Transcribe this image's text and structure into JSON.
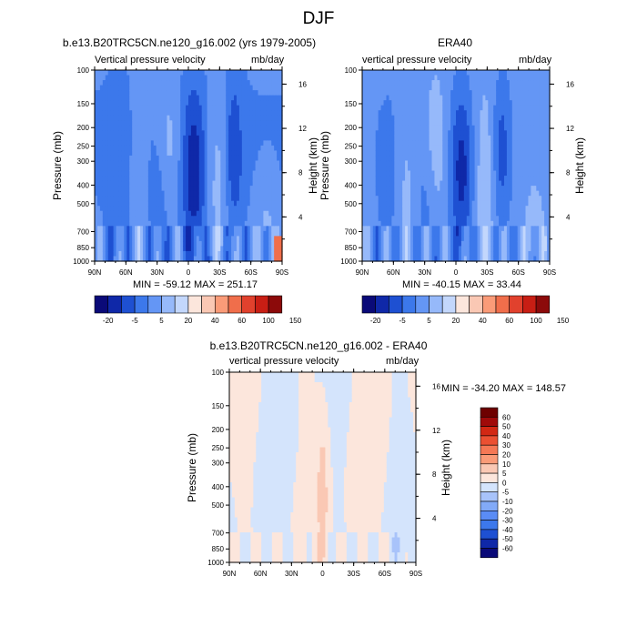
{
  "figure_title": "DJF",
  "panels": {
    "model": {
      "title": "b.e13.B20TRC5CN.ne120_g16.002 (yrs 1979-2005)",
      "left_label": "Vertical pressure velocity",
      "right_label": "mb/day",
      "minmax": "MIN = -59.12   MAX = 251.17"
    },
    "obs": {
      "title": "ERA40",
      "left_label": "vertical pressure velocity",
      "right_label": "mb/day",
      "minmax": "MIN = -40.15   MAX =  33.44"
    },
    "diff": {
      "title": "b.e13.B20TRC5CN.ne120_g16.002 - ERA40",
      "left_label": "vertical pressure velocity",
      "right_label": "mb/day",
      "minmax": "MIN = -34.20   MAX = 148.57"
    }
  },
  "axes": {
    "ylabel": "Pressure (mb)",
    "ylabel_right": "Height (km)",
    "x_ticks": [
      "90N",
      "60N",
      "30N",
      "0",
      "30S",
      "60S",
      "90S"
    ],
    "p_ticks": [
      "100",
      "150",
      "200",
      "250",
      "300",
      "400",
      "500",
      "700",
      "850",
      "1000"
    ],
    "h_ticks": [
      "16",
      "12",
      "8",
      "4"
    ]
  },
  "colorbars": {
    "main": {
      "colors": [
        "#0a0a78",
        "#0f28a8",
        "#1e50d2",
        "#3c78eb",
        "#6496f5",
        "#96b9fa",
        "#c3d7fc",
        "#fce6dc",
        "#fac8b4",
        "#fa9b78",
        "#f06e4b",
        "#e1412d",
        "#c81e14",
        "#8c0a0a"
      ],
      "labels": [
        "-20",
        "-5",
        "5",
        "20",
        "40",
        "60",
        "100",
        "150"
      ]
    },
    "diff": {
      "colors": [
        "#0a0a78",
        "#0f28a8",
        "#1e50d2",
        "#3c78eb",
        "#5a8cf5",
        "#82aaf8",
        "#a8c3fa",
        "#d4e4fc",
        "#fce6dc",
        "#fac8b4",
        "#fa9b78",
        "#f57855",
        "#eb5032",
        "#d22814",
        "#a00a0a",
        "#6e0000"
      ],
      "labels": [
        "-60",
        "-50",
        "-40",
        "-30",
        "-20",
        "-10",
        "-5",
        "0",
        "5",
        "10",
        "20",
        "30",
        "40",
        "50",
        "60"
      ]
    }
  },
  "chart_data": [
    {
      "type": "heatmap",
      "title": "b.e13.B20TRC5CN.ne120_g16.002 (yrs 1979-2005)",
      "xlabel": "",
      "ylabel": "Pressure (mb)",
      "x": [
        "90N",
        "60N",
        "30N",
        "0",
        "30S",
        "60S",
        "90S"
      ],
      "y": [
        100,
        150,
        200,
        250,
        300,
        400,
        500,
        700,
        850,
        1000
      ],
      "units": "mb/day",
      "min": -59.12,
      "max": 251.17
    },
    {
      "type": "heatmap",
      "title": "ERA40",
      "xlabel": "",
      "ylabel": "Pressure (mb)",
      "x": [
        "90N",
        "60N",
        "30N",
        "0",
        "30S",
        "60S",
        "90S"
      ],
      "y": [
        100,
        150,
        200,
        250,
        300,
        400,
        500,
        700,
        850,
        1000
      ],
      "units": "mb/day",
      "min": -40.15,
      "max": 33.44
    },
    {
      "type": "heatmap",
      "title": "b.e13.B20TRC5CN.ne120_g16.002 - ERA40",
      "xlabel": "",
      "ylabel": "Pressure (mb)",
      "x": [
        "90N",
        "60N",
        "30N",
        "0",
        "30S",
        "60S",
        "90S"
      ],
      "y": [
        100,
        150,
        200,
        250,
        300,
        400,
        500,
        700,
        850,
        1000
      ],
      "units": "mb/day",
      "min": -34.2,
      "max": 148.57
    }
  ]
}
